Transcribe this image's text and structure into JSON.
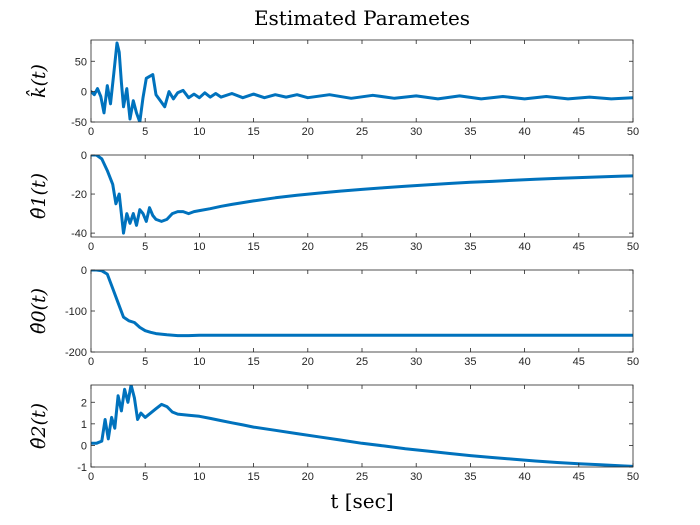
{
  "chart_data": {
    "type": "line",
    "title": "Estimated Parametes",
    "xlabel": "t [sec]",
    "line_color": "#0072BD",
    "grid": false,
    "panels": [
      {
        "ylabel": "k̂(t)",
        "xlim": [
          0,
          50
        ],
        "ylim": [
          -50,
          85
        ],
        "xticks": [
          0,
          5,
          10,
          15,
          20,
          25,
          30,
          35,
          40,
          45,
          50
        ],
        "yticks": [
          -50,
          0,
          50
        ],
        "series": [
          {
            "x": [
              0,
              0.3,
              0.6,
              0.9,
              1.2,
              1.5,
              1.8,
              2.1,
              2.4,
              2.6,
              2.8,
              3.0,
              3.3,
              3.6,
              3.9,
              4.2,
              4.5,
              4.8,
              5.1,
              5.4,
              5.7,
              6.0,
              6.4,
              6.8,
              7.2,
              7.6,
              8.0,
              8.5,
              9.0,
              9.5,
              10.0,
              10.5,
              11.0,
              11.5,
              12.0,
              13,
              14,
              15,
              16,
              17,
              18,
              19,
              20,
              22,
              24,
              26,
              28,
              30,
              32,
              34,
              36,
              38,
              40,
              42,
              44,
              46,
              48,
              50
            ],
            "y": [
              0,
              -5,
              5,
              -8,
              -35,
              10,
              -20,
              30,
              80,
              65,
              15,
              -25,
              5,
              -45,
              -15,
              -35,
              -50,
              -10,
              22,
              25,
              28,
              -5,
              -15,
              -25,
              0,
              -12,
              -2,
              2,
              -10,
              -4,
              -10,
              -2,
              -9,
              -3,
              -9,
              -3,
              -10,
              -4,
              -10,
              -5,
              -9,
              -5,
              -10,
              -5,
              -11,
              -6,
              -11,
              -7,
              -12,
              -7,
              -12,
              -8,
              -12,
              -8,
              -12,
              -9,
              -12,
              -10
            ]
          }
        ]
      },
      {
        "ylabel": "θ̂1(t)",
        "xlim": [
          0,
          50
        ],
        "ylim": [
          -42,
          0
        ],
        "xticks": [
          0,
          5,
          10,
          15,
          20,
          25,
          30,
          35,
          40,
          45,
          50
        ],
        "yticks": [
          -40,
          -20,
          0
        ],
        "series": [
          {
            "x": [
              0,
              0.5,
              1.0,
              1.5,
              2.0,
              2.3,
              2.6,
              3.0,
              3.3,
              3.6,
              3.9,
              4.2,
              4.5,
              4.8,
              5.1,
              5.4,
              5.7,
              6.0,
              6.5,
              7.0,
              7.5,
              8.0,
              8.5,
              9.0,
              9.5,
              10,
              11,
              12,
              13,
              14,
              15,
              17,
              19,
              21,
              23,
              25,
              27,
              29,
              31,
              33,
              35,
              37,
              39,
              41,
              43,
              45,
              47,
              49,
              50
            ],
            "y": [
              0,
              0,
              -2,
              -8,
              -15,
              -25,
              -20,
              -40,
              -30,
              -35,
              -30,
              -36,
              -28,
              -30,
              -34,
              -27,
              -31,
              -33,
              -34,
              -33,
              -30,
              -29,
              -29,
              -30,
              -29,
              -28.5,
              -27.5,
              -26.3,
              -25.3,
              -24.4,
              -23.5,
              -21.9,
              -20.6,
              -19.5,
              -18.5,
              -17.6,
              -16.8,
              -16.0,
              -15.3,
              -14.6,
              -14.0,
              -13.5,
              -12.9,
              -12.4,
              -12.0,
              -11.6,
              -11.2,
              -10.8,
              -10.7
            ]
          }
        ]
      },
      {
        "ylabel": "θ̂0(t)",
        "xlim": [
          0,
          50
        ],
        "ylim": [
          -200,
          0
        ],
        "xticks": [
          0,
          5,
          10,
          15,
          20,
          25,
          30,
          35,
          40,
          45,
          50
        ],
        "yticks": [
          -200,
          -100,
          0
        ],
        "series": [
          {
            "x": [
              0,
              0.5,
              1.0,
              1.5,
              2.0,
              2.5,
              3.0,
              3.5,
              4.0,
              4.5,
              5.0,
              5.5,
              6.0,
              7.0,
              8.0,
              9.0,
              10,
              15,
              20,
              25,
              30,
              35,
              40,
              45,
              50
            ],
            "y": [
              0,
              0,
              -2,
              -10,
              -45,
              -80,
              -115,
              -124,
              -128,
              -140,
              -148,
              -152,
              -155,
              -158,
              -160,
              -160,
              -159,
              -159,
              -159,
              -159,
              -159,
              -159,
              -159,
              -159,
              -159
            ]
          }
        ]
      },
      {
        "ylabel": "θ̂2(t)",
        "xlim": [
          0,
          50
        ],
        "ylim": [
          -1,
          2.8
        ],
        "xticks": [
          0,
          5,
          10,
          15,
          20,
          25,
          30,
          35,
          40,
          45,
          50
        ],
        "yticks": [
          -1,
          0,
          1,
          2
        ],
        "series": [
          {
            "x": [
              0,
              0.5,
              1.0,
              1.3,
              1.6,
              1.9,
              2.2,
              2.5,
              2.8,
              3.1,
              3.4,
              3.7,
              4.0,
              4.3,
              4.6,
              5.0,
              5.5,
              6.0,
              6.5,
              7.0,
              7.5,
              8.0,
              9,
              10,
              11,
              12,
              13,
              14,
              15,
              17,
              19,
              21,
              23,
              25,
              27,
              29,
              31,
              33,
              35,
              37,
              39,
              41,
              43,
              45,
              47,
              49,
              50
            ],
            "y": [
              0.1,
              0.1,
              0.2,
              1.2,
              0.3,
              1.3,
              0.8,
              2.3,
              1.6,
              2.6,
              2.0,
              2.8,
              2.2,
              1.2,
              1.5,
              1.3,
              1.5,
              1.7,
              1.9,
              1.8,
              1.55,
              1.45,
              1.4,
              1.35,
              1.25,
              1.15,
              1.05,
              0.95,
              0.85,
              0.7,
              0.55,
              0.4,
              0.25,
              0.1,
              -0.02,
              -0.15,
              -0.26,
              -0.37,
              -0.47,
              -0.56,
              -0.64,
              -0.72,
              -0.79,
              -0.85,
              -0.9,
              -0.95,
              -0.97
            ]
          }
        ]
      }
    ]
  }
}
